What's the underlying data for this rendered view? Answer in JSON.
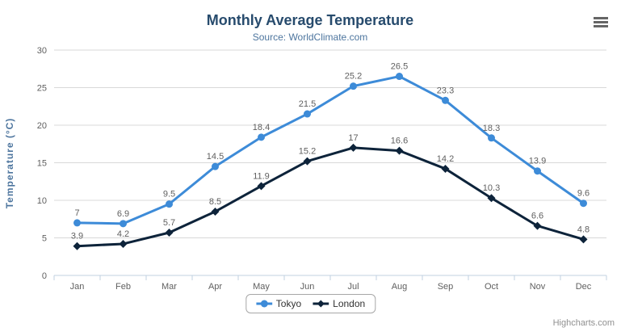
{
  "chart_data": {
    "type": "line",
    "title": "Monthly Average Temperature",
    "subtitle": "Source: WorldClimate.com",
    "xlabel": "",
    "ylabel": "Temperature (°C)",
    "categories": [
      "Jan",
      "Feb",
      "Mar",
      "Apr",
      "May",
      "Jun",
      "Jul",
      "Aug",
      "Sep",
      "Oct",
      "Nov",
      "Dec"
    ],
    "ylim": [
      0,
      30
    ],
    "ytick_interval": 5,
    "grid": true,
    "legend_position": "bottom",
    "data_labels_visible": true,
    "series": [
      {
        "name": "Tokyo",
        "marker": "circle",
        "color": "#3d8bd8",
        "values": [
          7,
          6.9,
          9.5,
          14.5,
          18.4,
          21.5,
          25.2,
          26.5,
          23.3,
          18.3,
          13.9,
          9.6
        ]
      },
      {
        "name": "London",
        "marker": "diamond",
        "color": "#0d233a",
        "values": [
          3.9,
          4.2,
          5.7,
          8.5,
          11.9,
          15.2,
          17,
          16.6,
          14.2,
          10.3,
          6.6,
          4.8
        ]
      }
    ]
  },
  "colors": {
    "title": "#274b6d",
    "subtitle": "#4d759e",
    "axis_title": "#4d759e",
    "axis_labels": "#606060",
    "data_labels": "#606060",
    "grid_line": "#d8d8d8",
    "axis_line": "#c0d0e0",
    "tick": "#c0d0e0",
    "legend_border": "#a7a7a7",
    "legend_text": "#333333",
    "credits": "#909090",
    "menu_icon": "#666666"
  },
  "credits": "Highcharts.com",
  "menu": {
    "icon": "hamburger-menu-icon"
  }
}
